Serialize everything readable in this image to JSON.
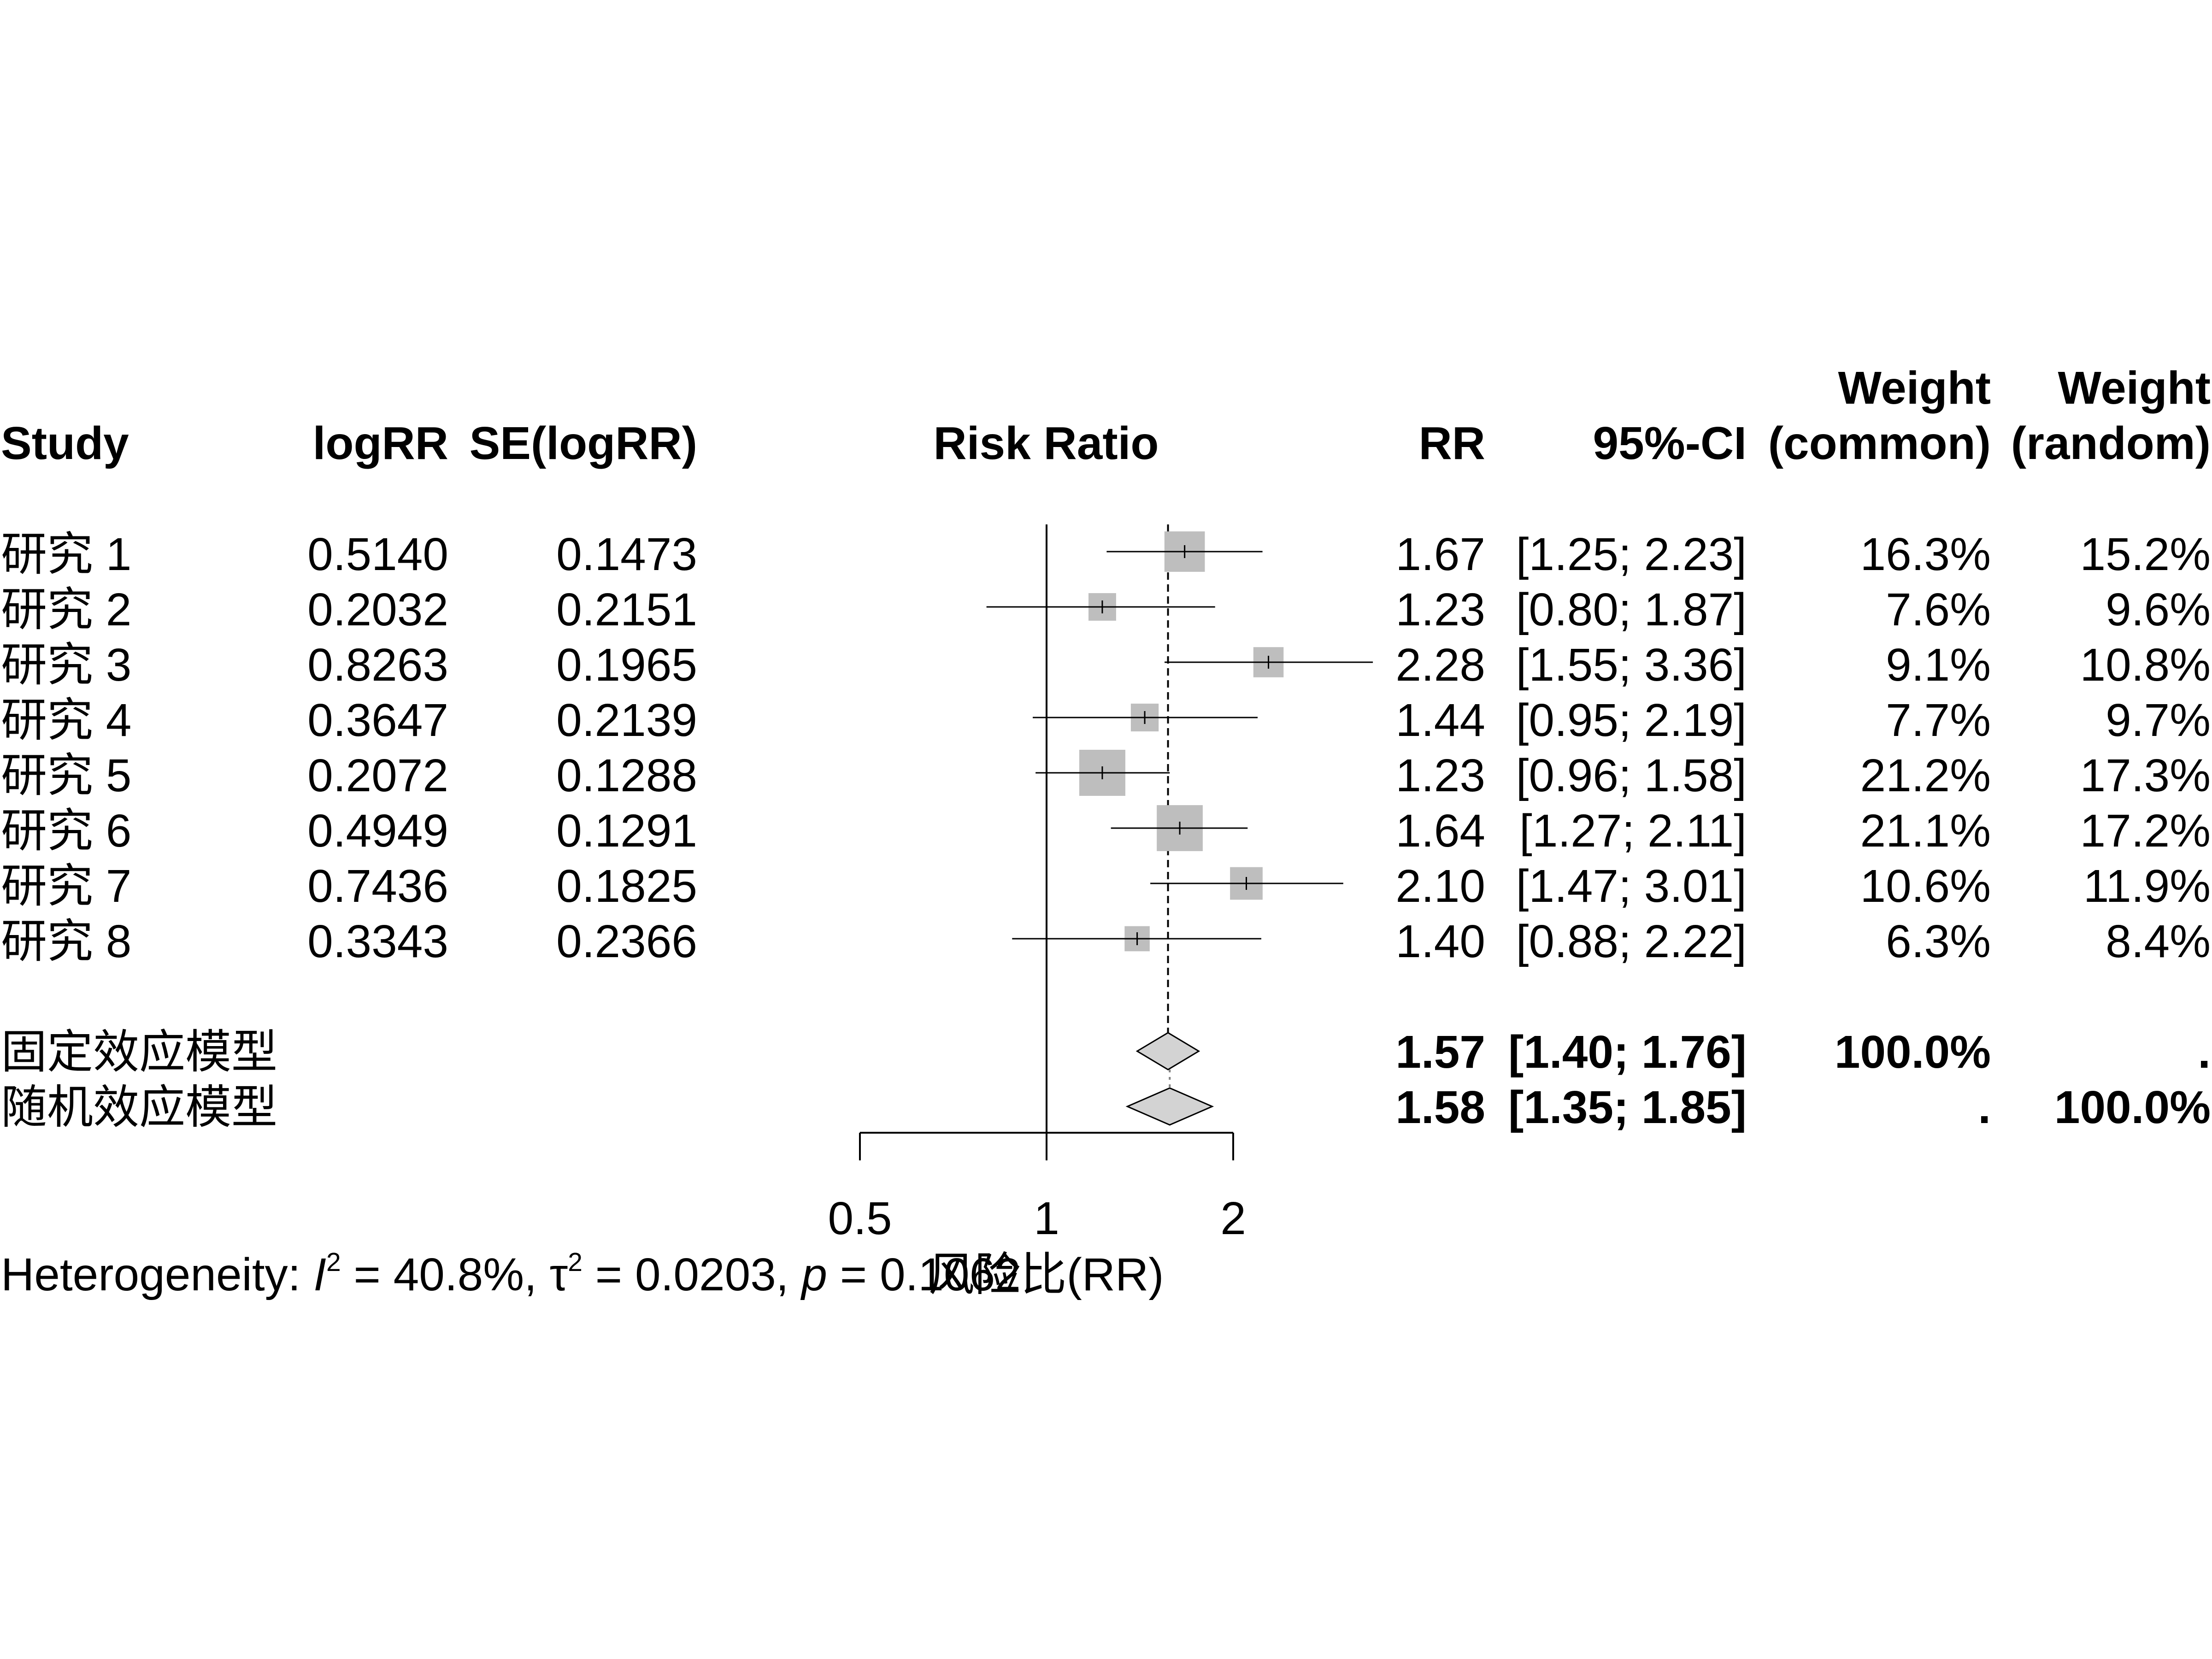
{
  "headers": {
    "study": "Study",
    "logrr": "logRR",
    "se": "SE(logRR)",
    "plot": "Risk Ratio",
    "rr": "RR",
    "ci": "95%-CI",
    "weight_common_top": "Weight",
    "weight_common_bottom": "(common)",
    "weight_random_top": "Weight",
    "weight_random_bottom": "(random)"
  },
  "studies": [
    {
      "name": "研究 1",
      "logrr": "0.5140",
      "se": "0.1473",
      "rr": "1.67",
      "ci": "[1.25; 2.23]",
      "w_common": "16.3%",
      "w_random": "15.2%"
    },
    {
      "name": "研究 2",
      "logrr": "0.2032",
      "se": "0.2151",
      "rr": "1.23",
      "ci": "[0.80; 1.87]",
      "w_common": "7.6%",
      "w_random": "9.6%"
    },
    {
      "name": "研究 3",
      "logrr": "0.8263",
      "se": "0.1965",
      "rr": "2.28",
      "ci": "[1.55; 3.36]",
      "w_common": "9.1%",
      "w_random": "10.8%"
    },
    {
      "name": "研究 4",
      "logrr": "0.3647",
      "se": "0.2139",
      "rr": "1.44",
      "ci": "[0.95; 2.19]",
      "w_common": "7.7%",
      "w_random": "9.7%"
    },
    {
      "name": "研究 5",
      "logrr": "0.2072",
      "se": "0.1288",
      "rr": "1.23",
      "ci": "[0.96; 1.58]",
      "w_common": "21.2%",
      "w_random": "17.3%"
    },
    {
      "name": "研究 6",
      "logrr": "0.4949",
      "se": "0.1291",
      "rr": "1.64",
      "ci": "[1.27; 2.11]",
      "w_common": "21.1%",
      "w_random": "17.2%"
    },
    {
      "name": "研究 7",
      "logrr": "0.7436",
      "se": "0.1825",
      "rr": "2.10",
      "ci": "[1.47; 3.01]",
      "w_common": "10.6%",
      "w_random": "11.9%"
    },
    {
      "name": "研究 8",
      "logrr": "0.3343",
      "se": "0.2366",
      "rr": "1.40",
      "ci": "[0.88; 2.22]",
      "w_common": "6.3%",
      "w_random": "8.4%"
    }
  ],
  "summaries": [
    {
      "name": "固定效应模型",
      "rr": "1.57",
      "ci": "[1.40; 1.76]",
      "w_common": "100.0%",
      "w_random": "."
    },
    {
      "name": "随机效应模型",
      "rr": "1.58",
      "ci": "[1.35; 1.85]",
      "w_common": ".",
      "w_random": "100.0%"
    }
  ],
  "heterogeneity": {
    "prefix": "Heterogeneity: ",
    "i2_sym": "I",
    "sup": "2",
    "i2_val": " = 40.8%, ",
    "tau_sym": "τ",
    "tau_val": " = 0.0203, ",
    "p_sym": "p",
    "p_val": " = 0.1062"
  },
  "xaxis_label": "风险比(RR)",
  "chart_data": {
    "type": "forest",
    "measure": "Risk Ratio",
    "scale": "log",
    "xlim": [
      0.5,
      2
    ],
    "ticks": [
      0.5,
      1,
      2
    ],
    "tick_labels": [
      "0.5",
      "1",
      "2"
    ],
    "null_value": 1,
    "xlabel": "风险比(RR)",
    "studies": [
      {
        "name": "研究 1",
        "rr": 1.67,
        "lower": 1.25,
        "upper": 2.23,
        "weight_common": 16.3,
        "weight_random": 15.2
      },
      {
        "name": "研究 2",
        "rr": 1.23,
        "lower": 0.8,
        "upper": 1.87,
        "weight_common": 7.6,
        "weight_random": 9.6
      },
      {
        "name": "研究 3",
        "rr": 2.28,
        "lower": 1.55,
        "upper": 3.36,
        "weight_common": 9.1,
        "weight_random": 10.8
      },
      {
        "name": "研究 4",
        "rr": 1.44,
        "lower": 0.95,
        "upper": 2.19,
        "weight_common": 7.7,
        "weight_random": 9.7
      },
      {
        "name": "研究 5",
        "rr": 1.23,
        "lower": 0.96,
        "upper": 1.58,
        "weight_common": 21.2,
        "weight_random": 17.3
      },
      {
        "name": "研究 6",
        "rr": 1.64,
        "lower": 1.27,
        "upper": 2.11,
        "weight_common": 21.1,
        "weight_random": 17.2
      },
      {
        "name": "研究 7",
        "rr": 2.1,
        "lower": 1.47,
        "upper": 3.01,
        "weight_common": 10.6,
        "weight_random": 11.9
      },
      {
        "name": "研究 8",
        "rr": 1.4,
        "lower": 0.88,
        "upper": 2.22,
        "weight_common": 6.3,
        "weight_random": 8.4
      }
    ],
    "summary": [
      {
        "name": "固定效应模型",
        "rr": 1.57,
        "lower": 1.4,
        "upper": 1.76
      },
      {
        "name": "随机效应模型",
        "rr": 1.58,
        "lower": 1.35,
        "upper": 1.85
      }
    ],
    "colors": {
      "box": "#bebebe",
      "diamond": "#d3d3d3",
      "line": "#000000"
    }
  }
}
